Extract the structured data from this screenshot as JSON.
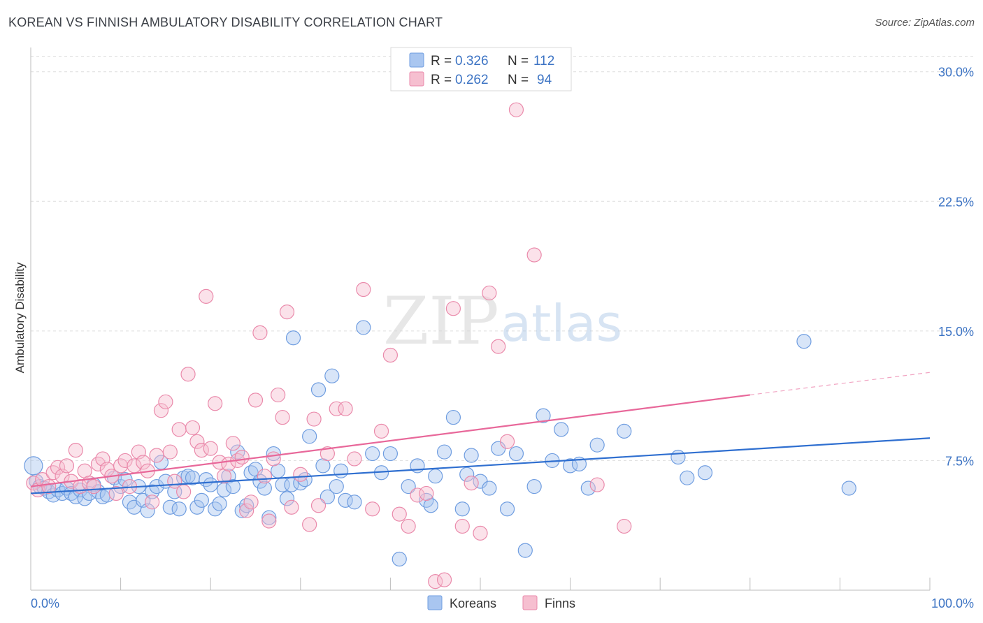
{
  "header": {
    "title": "KOREAN VS FINNISH AMBULATORY DISABILITY CORRELATION CHART",
    "source": "Source: ZipAtlas.com"
  },
  "watermark": {
    "part1": "ZIP",
    "part2": "atlas"
  },
  "colors": {
    "korean_fill": "#a9c6f0",
    "korean_stroke": "#6f9de0",
    "korean_line": "#2f6fd0",
    "finn_fill": "#f6bfd0",
    "finn_stroke": "#ea8aab",
    "finn_line": "#e8689a",
    "grid": "#dedede",
    "axis_text": "#3d74c4"
  },
  "legend": {
    "rows": [
      {
        "r_label": "R =",
        "r_value": "0.326",
        "n_label": "N =",
        "n_value": "112"
      },
      {
        "r_label": "R =",
        "r_value": "0.262",
        "n_label": "N =",
        "n_value": "94"
      }
    ]
  },
  "bottom_legend": [
    "Koreans",
    "Finns"
  ],
  "chart_data": {
    "type": "scatter",
    "title": "KOREAN VS FINNISH AMBULATORY DISABILITY CORRELATION CHART",
    "xlabel": "",
    "ylabel": "Ambulatory Disability",
    "xlim": [
      0,
      100
    ],
    "ylim": [
      0,
      31
    ],
    "x_tick_labels": [
      "0.0%",
      "100.0%"
    ],
    "y_ticks": [
      7.5,
      15.0,
      22.5,
      30.0
    ],
    "y_tick_labels": [
      "7.5%",
      "15.0%",
      "22.5%",
      "30.0%"
    ],
    "grid": true,
    "legend_position": "top-center",
    "series": [
      {
        "name": "Koreans",
        "R": 0.326,
        "N": 112,
        "trend": {
          "x": [
            0,
            100
          ],
          "y": [
            5.6,
            8.8
          ]
        },
        "points": [
          [
            0.3,
            7.2
          ],
          [
            0.6,
            6.3
          ],
          [
            1.0,
            6.0
          ],
          [
            1.5,
            5.9
          ],
          [
            2,
            5.7
          ],
          [
            2.5,
            5.5
          ],
          [
            3,
            5.8
          ],
          [
            3.5,
            5.6
          ],
          [
            4,
            5.9
          ],
          [
            4.5,
            5.6
          ],
          [
            5,
            5.4
          ],
          [
            5.5,
            5.8
          ],
          [
            6,
            5.3
          ],
          [
            6.5,
            5.6
          ],
          [
            7,
            6.1
          ],
          [
            7.5,
            5.7
          ],
          [
            8,
            5.4
          ],
          [
            8.5,
            5.5
          ],
          [
            9.3,
            6.5
          ],
          [
            10,
            6.0
          ],
          [
            10.5,
            6.4
          ],
          [
            11,
            5.1
          ],
          [
            11.5,
            4.8
          ],
          [
            12,
            6.0
          ],
          [
            12.5,
            5.2
          ],
          [
            13,
            4.6
          ],
          [
            13.5,
            5.7
          ],
          [
            14,
            6.0
          ],
          [
            14.5,
            7.4
          ],
          [
            15,
            6.3
          ],
          [
            15.5,
            4.8
          ],
          [
            16,
            5.7
          ],
          [
            16.5,
            4.7
          ],
          [
            17,
            6.5
          ],
          [
            17.5,
            6.6
          ],
          [
            18,
            6.5
          ],
          [
            18.5,
            4.8
          ],
          [
            19,
            5.2
          ],
          [
            19.5,
            6.4
          ],
          [
            20,
            6.1
          ],
          [
            20.5,
            4.7
          ],
          [
            21,
            5.0
          ],
          [
            21.5,
            5.8
          ],
          [
            22,
            6.6
          ],
          [
            22.5,
            6.0
          ],
          [
            23,
            8.0
          ],
          [
            23.5,
            4.6
          ],
          [
            24,
            4.9
          ],
          [
            24.5,
            6.8
          ],
          [
            25,
            7.0
          ],
          [
            25.5,
            6.3
          ],
          [
            26,
            5.9
          ],
          [
            26.5,
            4.2
          ],
          [
            27,
            7.9
          ],
          [
            27.5,
            6.9
          ],
          [
            28,
            6.1
          ],
          [
            28.5,
            5.3
          ],
          [
            29,
            6.1
          ],
          [
            29.2,
            14.6
          ],
          [
            30,
            6.2
          ],
          [
            30.5,
            6.4
          ],
          [
            31,
            8.9
          ],
          [
            32,
            11.6
          ],
          [
            32.5,
            7.2
          ],
          [
            33,
            5.4
          ],
          [
            33.5,
            12.4
          ],
          [
            34,
            6.0
          ],
          [
            34.5,
            6.9
          ],
          [
            35,
            5.2
          ],
          [
            36,
            5.1
          ],
          [
            37,
            15.2
          ],
          [
            38,
            7.9
          ],
          [
            39,
            6.8
          ],
          [
            40,
            7.9
          ],
          [
            41,
            1.8
          ],
          [
            42,
            6.0
          ],
          [
            43,
            7.2
          ],
          [
            44,
            5.2
          ],
          [
            44.5,
            4.9
          ],
          [
            45,
            6.6
          ],
          [
            46,
            8.0
          ],
          [
            47,
            10.0
          ],
          [
            48,
            4.7
          ],
          [
            48.5,
            6.7
          ],
          [
            49,
            7.8
          ],
          [
            50,
            6.3
          ],
          [
            51,
            5.9
          ],
          [
            52,
            8.2
          ],
          [
            53,
            4.7
          ],
          [
            54,
            7.9
          ],
          [
            55,
            2.3
          ],
          [
            56,
            6.0
          ],
          [
            57,
            10.1
          ],
          [
            58,
            7.5
          ],
          [
            59,
            9.3
          ],
          [
            60,
            7.2
          ],
          [
            61,
            7.3
          ],
          [
            62,
            5.9
          ],
          [
            63,
            8.4
          ],
          [
            66,
            9.2
          ],
          [
            72,
            7.7
          ],
          [
            73,
            6.5
          ],
          [
            75,
            6.8
          ],
          [
            86,
            14.4
          ],
          [
            91,
            5.9
          ]
        ]
      },
      {
        "name": "Finns",
        "R": 0.262,
        "N": 94,
        "trend": {
          "x": [
            0,
            80
          ],
          "y": [
            6.0,
            11.3
          ]
        },
        "trend_dashed": {
          "x": [
            80,
            100
          ],
          "y": [
            11.3,
            12.6
          ]
        },
        "points": [
          [
            0.3,
            6.2
          ],
          [
            0.8,
            5.8
          ],
          [
            1.3,
            6.4
          ],
          [
            2,
            6.0
          ],
          [
            2.5,
            6.8
          ],
          [
            3,
            7.1
          ],
          [
            3.5,
            6.6
          ],
          [
            4,
            7.2
          ],
          [
            4.5,
            6.3
          ],
          [
            5,
            8.1
          ],
          [
            5.5,
            6.0
          ],
          [
            6,
            6.9
          ],
          [
            6.5,
            6.2
          ],
          [
            7,
            6.0
          ],
          [
            7.5,
            7.3
          ],
          [
            8,
            7.6
          ],
          [
            8.5,
            7.0
          ],
          [
            9,
            6.6
          ],
          [
            9.5,
            5.6
          ],
          [
            10,
            7.2
          ],
          [
            10.5,
            7.5
          ],
          [
            11,
            6.0
          ],
          [
            11.5,
            7.2
          ],
          [
            12,
            8.0
          ],
          [
            12.5,
            7.4
          ],
          [
            13,
            6.9
          ],
          [
            13.5,
            5.1
          ],
          [
            14,
            7.8
          ],
          [
            14.5,
            10.4
          ],
          [
            15,
            10.9
          ],
          [
            15.5,
            8.0
          ],
          [
            16,
            6.3
          ],
          [
            16.5,
            9.3
          ],
          [
            17,
            5.7
          ],
          [
            17.5,
            12.5
          ],
          [
            18,
            9.4
          ],
          [
            18.5,
            8.6
          ],
          [
            19,
            8.1
          ],
          [
            19.5,
            17.0
          ],
          [
            20,
            8.2
          ],
          [
            20.5,
            10.8
          ],
          [
            21,
            7.4
          ],
          [
            21.5,
            6.6
          ],
          [
            22,
            7.3
          ],
          [
            22.5,
            8.5
          ],
          [
            23,
            7.5
          ],
          [
            23.5,
            7.7
          ],
          [
            24,
            4.6
          ],
          [
            24.5,
            5.1
          ],
          [
            25,
            11.0
          ],
          [
            25.5,
            14.9
          ],
          [
            26,
            6.6
          ],
          [
            26.5,
            4.0
          ],
          [
            27,
            7.6
          ],
          [
            27.5,
            11.3
          ],
          [
            28,
            10.0
          ],
          [
            28.5,
            16.1
          ],
          [
            29,
            4.8
          ],
          [
            30,
            6.7
          ],
          [
            31,
            3.8
          ],
          [
            31.5,
            9.9
          ],
          [
            32,
            4.9
          ],
          [
            33,
            7.9
          ],
          [
            34,
            10.5
          ],
          [
            35,
            10.5
          ],
          [
            36,
            7.6
          ],
          [
            37,
            17.4
          ],
          [
            38,
            4.7
          ],
          [
            39,
            9.2
          ],
          [
            40,
            13.6
          ],
          [
            41,
            4.4
          ],
          [
            42,
            3.7
          ],
          [
            43,
            5.5
          ],
          [
            44,
            5.6
          ],
          [
            45,
            0.5
          ],
          [
            46,
            0.6
          ],
          [
            47,
            16.3
          ],
          [
            48,
            3.7
          ],
          [
            49,
            6.2
          ],
          [
            50,
            3.3
          ],
          [
            51,
            17.2
          ],
          [
            52,
            14.1
          ],
          [
            53,
            8.6
          ],
          [
            54,
            27.8
          ],
          [
            56,
            19.4
          ],
          [
            63,
            6.1
          ],
          [
            66,
            3.7
          ]
        ]
      }
    ]
  }
}
